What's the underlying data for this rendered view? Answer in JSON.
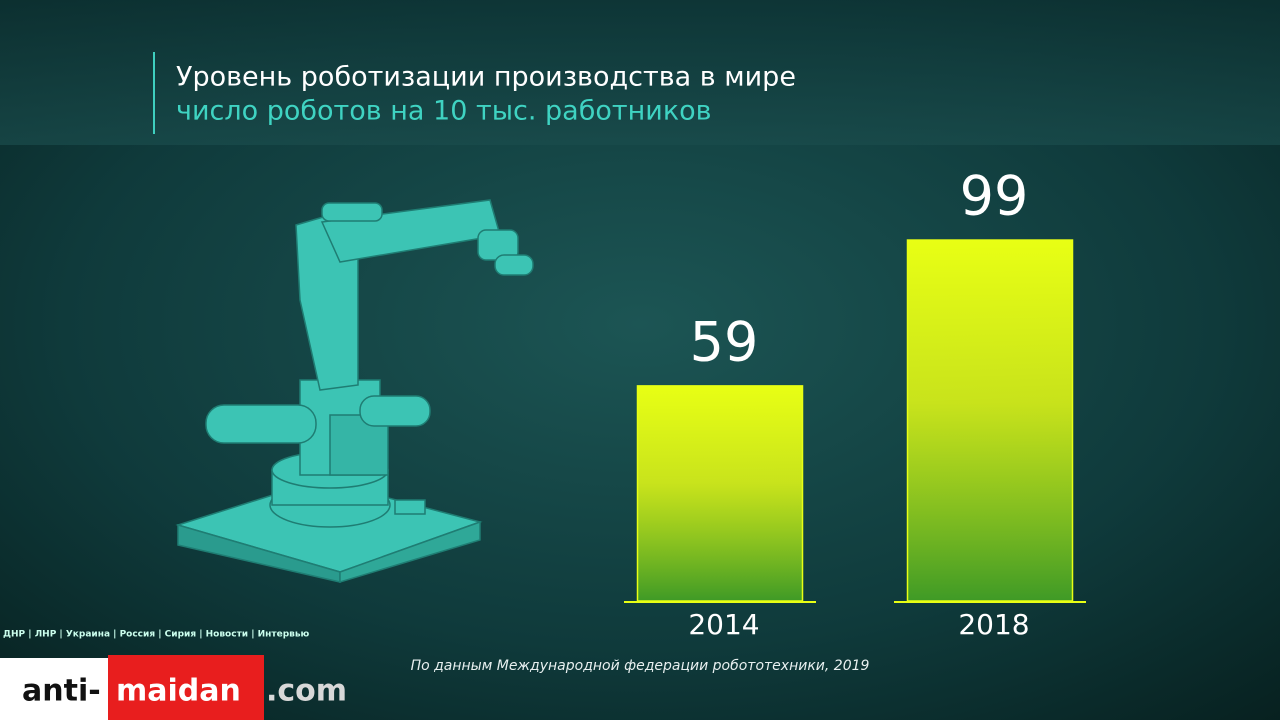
{
  "chart_data": {
    "type": "bar",
    "title": "Уровень роботизации производства в мире",
    "subtitle": "число роботов на 10 тыс. работников",
    "categories": [
      "2014",
      "2018"
    ],
    "values": [
      59,
      99
    ],
    "color": "#e8ff14",
    "source": "По данным Международной федерации робототехники, 2019"
  },
  "nav": "ДНР | ЛНР | Украина | Россия | Сирия | Новости | Интервью",
  "watermark": {
    "left": "anti-",
    "middle": "maidan",
    "right": ".com"
  }
}
